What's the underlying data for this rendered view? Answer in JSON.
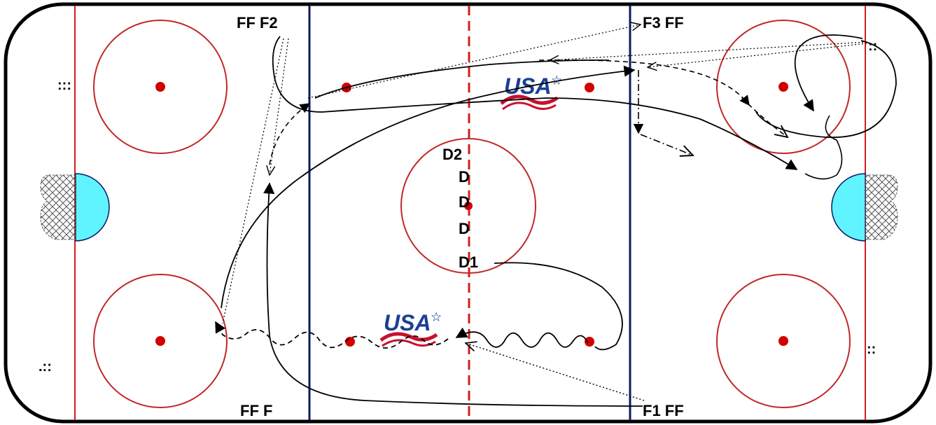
{
  "colors": {
    "boards": "#000000",
    "red_line": "#d01e1e",
    "blue_line": "#0d1b5e",
    "circle": "#c0282a",
    "dot": "#d10000",
    "crease": "#5ff4ff",
    "logo_blue": "#1c3f94",
    "logo_red": "#c8102e"
  },
  "logos": {
    "top": "USA",
    "bottom": "USA"
  },
  "labels": {
    "ff_f2": "FF F2",
    "f3_ff": "F3 FF",
    "ff_f": "FF F",
    "f1_ff": "F1 FF",
    "d2": "D2",
    "d_a": "D",
    "d_b": "D",
    "d_c": "D",
    "d1": "D1"
  },
  "markers": {
    "top_left": ":::",
    "bottom_left": ".::",
    "top_right": "::",
    "bottom_right": "::"
  }
}
